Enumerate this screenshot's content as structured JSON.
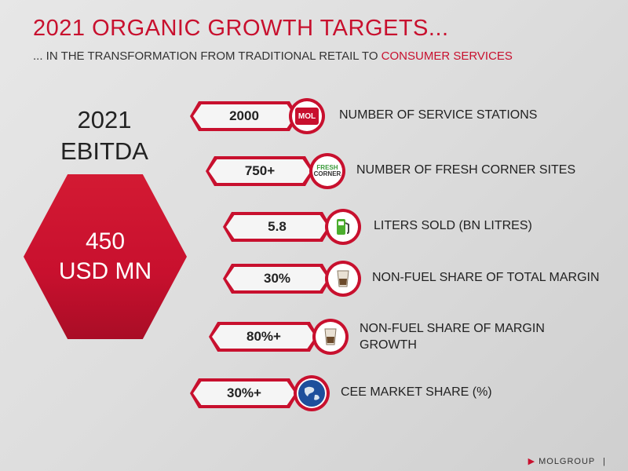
{
  "title": "2021 ORGANIC GROWTH TARGETS...",
  "subtitle": {
    "prefix": "... IN THE TRANSFORMATION FROM TRADITIONAL RETAIL TO ",
    "accent": "CONSUMER SERVICES"
  },
  "ebitda": {
    "line1": "2021",
    "line2": "EBITDA",
    "value_line1": "450",
    "value_line2": "USD MN"
  },
  "targets": [
    {
      "value": "2000",
      "label": "NUMBER OF SERVICE STATIONS",
      "icon": "mol-logo-icon"
    },
    {
      "value": "750+",
      "label": "NUMBER OF FRESH CORNER SITES",
      "icon": "fresh-corner-logo-icon"
    },
    {
      "value": "5.8",
      "label": "LITERS SOLD (BN LITRES)",
      "icon": "fuel-pump-icon"
    },
    {
      "value": "30%",
      "label": "NON-FUEL SHARE OF TOTAL MARGIN",
      "icon": "coffee-cup-icon"
    },
    {
      "value": "80%+",
      "label": "NON-FUEL SHARE OF MARGIN GROWTH",
      "icon": "coffee-cup-icon"
    },
    {
      "value": "30%+",
      "label": "CEE MARKET SHARE (%)",
      "icon": "globe-icon"
    }
  ],
  "logos": {
    "mol": "MOL",
    "fresh": "FRESH",
    "corner": "CORNER"
  },
  "footer": {
    "brand": "MOLGROUP",
    "separator": "|"
  },
  "colors": {
    "accent": "#c8102e",
    "background": "#e2e2e2"
  }
}
